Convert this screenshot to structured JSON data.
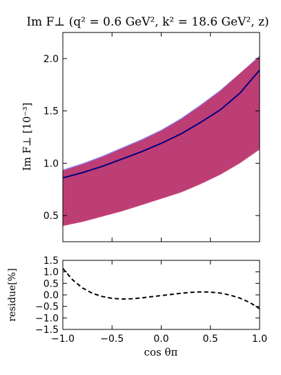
{
  "chart_data": [
    {
      "type": "area",
      "title": "Im F⊥ (q² = 0.6 GeV², k² = 18.6 GeV², z)",
      "ylabel": "Im F⊥ [10⁻³]",
      "xlim": [
        -1.0,
        1.0
      ],
      "ylim": [
        0.25,
        2.25
      ],
      "yticks": [
        "0.5",
        "1.0",
        "1.5",
        "2.0"
      ],
      "colors": {
        "blue_band": "#7b7bff",
        "red_band": "#c0396e",
        "central_line": "#00007f",
        "dashed_line": "#000000"
      },
      "x": [
        -1.0,
        -0.8,
        -0.6,
        -0.4,
        -0.2,
        0.0,
        0.2,
        0.4,
        0.6,
        0.8,
        1.0
      ],
      "series": [
        {
          "values": [
            0.86,
            0.91,
            0.97,
            1.04,
            1.11,
            1.19,
            1.28,
            1.39,
            1.51,
            1.67,
            1.89
          ]
        },
        {
          "values": [
            0.94,
            1.0,
            1.07,
            1.15,
            1.23,
            1.32,
            1.43,
            1.56,
            1.7,
            1.86,
            2.03
          ]
        },
        {
          "values": [
            0.41,
            0.45,
            0.5,
            0.55,
            0.61,
            0.67,
            0.73,
            0.81,
            0.9,
            1.01,
            1.15
          ]
        },
        {
          "values": [
            0.93,
            0.99,
            1.06,
            1.14,
            1.22,
            1.31,
            1.42,
            1.55,
            1.69,
            1.86,
            2.02
          ]
        },
        {
          "values": [
            0.4,
            0.44,
            0.49,
            0.54,
            0.6,
            0.66,
            0.72,
            0.8,
            0.89,
            1.0,
            1.13
          ]
        }
      ]
    },
    {
      "type": "line",
      "xlabel": "cos θπ",
      "ylabel": "residue[%]",
      "xlim": [
        -1.0,
        1.0
      ],
      "ylim": [
        -1.5,
        1.5
      ],
      "xticks": [
        "−1.0",
        "−0.5",
        "0.0",
        "0.5",
        "1.0"
      ],
      "yticks": [
        "−1.5",
        "−1.0",
        "−0.5",
        "0.0",
        "0.5",
        "1.0",
        "1.5"
      ],
      "x": [
        -1.0,
        -0.9,
        -0.8,
        -0.7,
        -0.6,
        -0.5,
        -0.4,
        -0.3,
        -0.2,
        -0.1,
        0.0,
        0.1,
        0.2,
        0.3,
        0.4,
        0.5,
        0.6,
        0.7,
        0.8,
        0.9,
        1.0
      ],
      "values": [
        1.15,
        0.65,
        0.3,
        0.07,
        -0.07,
        -0.15,
        -0.18,
        -0.17,
        -0.13,
        -0.08,
        -0.03,
        0.02,
        0.07,
        0.11,
        0.13,
        0.12,
        0.08,
        -0.01,
        -0.14,
        -0.33,
        -0.6
      ]
    }
  ]
}
